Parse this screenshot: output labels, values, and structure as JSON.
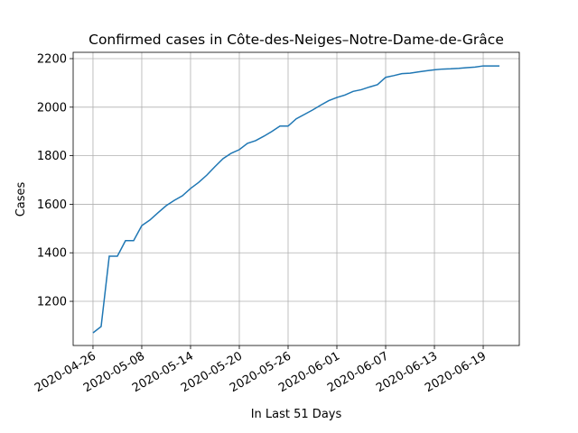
{
  "chart_data": {
    "type": "line",
    "title": "Confirmed cases in Côte-des-Neiges–Notre-Dame-de-Grâce",
    "x_label": "In Last 51 Days",
    "y_label": "Cases",
    "x": [
      0,
      1,
      2,
      3,
      4,
      5,
      6,
      7,
      8,
      9,
      10,
      11,
      12,
      13,
      14,
      15,
      16,
      17,
      18,
      19,
      20,
      21,
      22,
      23,
      24,
      25,
      26,
      27,
      28,
      29,
      30,
      31,
      32,
      33,
      34,
      35,
      36,
      37,
      38,
      39,
      40,
      41,
      42,
      43,
      44,
      45,
      46,
      47,
      48,
      49,
      50
    ],
    "series": [
      {
        "color": "#1f77b4",
        "values": [
          1070,
          1096,
          1386,
          1386,
          1450,
          1450,
          1512,
          1535,
          1565,
          1594,
          1616,
          1635,
          1665,
          1690,
          1720,
          1755,
          1788,
          1810,
          1825,
          1851,
          1862,
          1880,
          1900,
          1922,
          1922,
          1952,
          1970,
          1988,
          2008,
          2027,
          2040,
          2050,
          2065,
          2072,
          2083,
          2093,
          2123,
          2130,
          2138,
          2140,
          2145,
          2150,
          2154,
          2157,
          2158,
          2160,
          2163,
          2165,
          2170,
          2170,
          2170
        ]
      }
    ],
    "xlim": [
      -2.44,
      52.44
    ],
    "xticks": [
      {
        "value": 0,
        "label": "2020-04-26"
      },
      {
        "value": 6,
        "label": "2020-05-08"
      },
      {
        "value": 12,
        "label": "2020-05-14"
      },
      {
        "value": 18,
        "label": "2020-05-20"
      },
      {
        "value": 24,
        "label": "2020-05-26"
      },
      {
        "value": 30,
        "label": "2020-06-01"
      },
      {
        "value": 36,
        "label": "2020-06-07"
      },
      {
        "value": 42,
        "label": "2020-06-13"
      },
      {
        "value": 48,
        "label": "2020-06-19"
      }
    ],
    "ylim": [
      1018,
      2226
    ],
    "yticks": [
      1200,
      1400,
      1600,
      1800,
      2000,
      2200
    ],
    "grid": true
  }
}
